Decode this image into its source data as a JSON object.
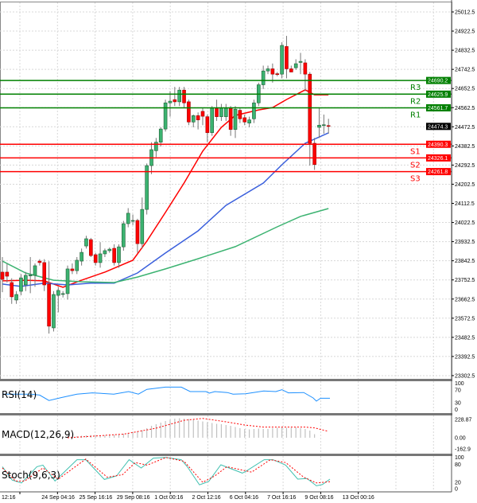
{
  "chart_data": {
    "type": "candlestick",
    "price_axis": {
      "ticks": [
        "25012.5",
        "24922.5",
        "24832.5",
        "24742.5",
        "24652.5",
        "24562.5",
        "24472.5",
        "24382.5",
        "24292.5",
        "24202.5",
        "24112.5",
        "24022.5",
        "23932.5",
        "23842.5",
        "23752.5",
        "23662.5",
        "23572.5",
        "23482.5",
        "23392.5",
        "23302.5"
      ],
      "range": [
        23302.5,
        25012.5
      ]
    },
    "time_axis": {
      "ticks": [
        "12:16",
        "24 Sep 04:16",
        "25 Sep 16:16",
        "29 Sep 08:16",
        "1 Oct 00:16",
        "2 Oct 12:16",
        "6 Oct 04:16",
        "7 Oct 16:16",
        "9 Oct 08:16",
        "13 Oct 00:16"
      ]
    },
    "grid": true,
    "candles_ohlc": [
      [
        23789,
        23860,
        23695,
        23755
      ],
      [
        23789,
        23830,
        23740,
        23770
      ],
      [
        23740,
        23760,
        23640,
        23673
      ],
      [
        23658,
        23700,
        23640,
        23684
      ],
      [
        23699,
        23780,
        23680,
        23762
      ],
      [
        23729,
        23790,
        23700,
        23774
      ],
      [
        23775,
        23860,
        23690,
        23775
      ],
      [
        23774,
        23830,
        23720,
        23819
      ],
      [
        23841,
        23850,
        23820,
        23834
      ],
      [
        23834,
        23850,
        23700,
        23729
      ],
      [
        23733,
        23840,
        23500,
        23535
      ],
      [
        23527,
        23700,
        23510,
        23684
      ],
      [
        23680,
        23720,
        23600,
        23703
      ],
      [
        23688,
        23700,
        23670,
        23688
      ],
      [
        23688,
        23820,
        23660,
        23804
      ],
      [
        23804,
        23830,
        23780,
        23796
      ],
      [
        23796,
        23860,
        23780,
        23845
      ],
      [
        23841,
        23900,
        23820,
        23882
      ],
      [
        23912,
        23960,
        23900,
        23946
      ],
      [
        23942,
        23950,
        23860,
        23867
      ],
      [
        23871,
        23880,
        23820,
        23834
      ],
      [
        23834,
        23930,
        23810,
        23875
      ],
      [
        23875,
        23900,
        23860,
        23890
      ],
      [
        23890,
        23905,
        23880,
        23897
      ],
      [
        23901,
        23920,
        23820,
        23834
      ],
      [
        23834,
        23920,
        23810,
        23908
      ],
      [
        23908,
        24030,
        23890,
        24017
      ],
      [
        24017,
        24090,
        24000,
        24066
      ],
      [
        24032,
        24060,
        24010,
        24032
      ],
      [
        24032,
        24040,
        23880,
        23923
      ],
      [
        23923,
        24140,
        23900,
        24084
      ],
      [
        24084,
        24300,
        24060,
        24290
      ],
      [
        24290,
        24400,
        24250,
        24365
      ],
      [
        24360,
        24420,
        24330,
        24400
      ],
      [
        24400,
        24470,
        24380,
        24462
      ],
      [
        24462,
        24600,
        24450,
        24585
      ],
      [
        24585,
        24640,
        24520,
        24593
      ],
      [
        24600,
        24660,
        24570,
        24590
      ],
      [
        24590,
        24660,
        24570,
        24645
      ],
      [
        24645,
        24660,
        24560,
        24585
      ],
      [
        24590,
        24600,
        24480,
        24495
      ],
      [
        24495,
        24530,
        24470,
        24525
      ],
      [
        24525,
        24540,
        24460,
        24505
      ],
      [
        24545,
        24560,
        24480,
        24522
      ],
      [
        24520,
        24530,
        24400,
        24445
      ],
      [
        24445,
        24570,
        24430,
        24560
      ],
      [
        24560,
        24600,
        24500,
        24520
      ],
      [
        24520,
        24580,
        24500,
        24560
      ],
      [
        24520,
        24580,
        24500,
        24560
      ],
      [
        24560,
        24570,
        24430,
        24460
      ],
      [
        24460,
        24570,
        24420,
        24555
      ],
      [
        24550,
        24560,
        24490,
        24510
      ],
      [
        24515,
        24530,
        24480,
        24495
      ],
      [
        24490,
        24520,
        24470,
        24505
      ],
      [
        24510,
        24600,
        24490,
        24585
      ],
      [
        24585,
        24680,
        24570,
        24670
      ],
      [
        24670,
        24760,
        24650,
        24735
      ],
      [
        24735,
        24760,
        24720,
        24745
      ],
      [
        24745,
        24770,
        24680,
        24720
      ],
      [
        24722,
        24730,
        24710,
        24718
      ],
      [
        24720,
        24870,
        24700,
        24855
      ],
      [
        24850,
        24900,
        24700,
        24745
      ],
      [
        24745,
        24760,
        24730,
        24730
      ],
      [
        24750,
        24790,
        24740,
        24769
      ],
      [
        24775,
        24820,
        24720,
        24780
      ],
      [
        24773,
        24790,
        24640,
        24720
      ],
      [
        24720,
        24730,
        24290,
        24395
      ],
      [
        24395,
        24420,
        24270,
        24295
      ],
      [
        24470,
        24560,
        24420,
        24480
      ],
      [
        24480,
        24530,
        24440,
        24482
      ],
      [
        24478,
        24510,
        24440,
        24475
      ]
    ],
    "moving_averages": [
      {
        "color": "#ff0000",
        "points": [
          [
            0,
            23748
          ],
          [
            5,
            23751
          ],
          [
            9,
            23748
          ],
          [
            13,
            23718
          ],
          [
            17,
            23751
          ],
          [
            22,
            23789
          ],
          [
            28,
            23845
          ],
          [
            31,
            23935
          ],
          [
            35,
            24070
          ],
          [
            39,
            24208
          ],
          [
            43,
            24358
          ],
          [
            47,
            24470
          ],
          [
            50,
            24526
          ],
          [
            55,
            24552
          ],
          [
            58,
            24563
          ],
          [
            61,
            24601
          ],
          [
            65,
            24646
          ],
          [
            66,
            24635
          ],
          [
            67,
            24623
          ],
          [
            70,
            24623
          ]
        ]
      },
      {
        "color": "#3a5fdc",
        "points": [
          [
            0,
            23733
          ],
          [
            4,
            23722
          ],
          [
            9,
            23737
          ],
          [
            14,
            23729
          ],
          [
            19,
            23737
          ],
          [
            24,
            23737
          ],
          [
            29,
            23785
          ],
          [
            35,
            23879
          ],
          [
            42,
            23983
          ],
          [
            48,
            24103
          ],
          [
            56,
            24208
          ],
          [
            60,
            24294
          ],
          [
            65,
            24395
          ],
          [
            70,
            24444
          ]
        ]
      },
      {
        "color": "#3cb371",
        "points": [
          [
            0,
            23841
          ],
          [
            5,
            23785
          ],
          [
            11,
            23751
          ],
          [
            17,
            23744
          ],
          [
            24,
            23740
          ],
          [
            29,
            23766
          ],
          [
            35,
            23804
          ],
          [
            42,
            23852
          ],
          [
            50,
            23909
          ],
          [
            59,
            24002
          ],
          [
            64,
            24051
          ],
          [
            70,
            24088
          ]
        ]
      }
    ],
    "pivots": [
      {
        "label": "R3",
        "value": "24690.2",
        "color": "#008000"
      },
      {
        "label": "R2",
        "value": "24625.9",
        "color": "#008000"
      },
      {
        "label": "R1",
        "value": "24561.7",
        "color": "#008000"
      },
      {
        "label": "S1",
        "value": "24390.3",
        "color": "#ff0000"
      },
      {
        "label": "S2",
        "value": "24326.1",
        "color": "#ff0000"
      },
      {
        "label": "S3",
        "value": "24261.8",
        "color": "#ff0000"
      }
    ],
    "current_price": "24474.3",
    "rsi": {
      "label": "RSI(14)",
      "ticks": [
        "100",
        "70",
        "30",
        "0"
      ],
      "color": "#1e90ff",
      "points": [
        [
          0,
          57
        ],
        [
          6.1,
          57
        ],
        [
          8,
          54
        ],
        [
          10,
          37
        ],
        [
          12.6,
          46
        ],
        [
          16,
          57
        ],
        [
          19.3,
          61
        ],
        [
          23.9,
          57
        ],
        [
          27.1,
          65
        ],
        [
          29.2,
          57
        ],
        [
          31,
          72
        ],
        [
          35,
          79
        ],
        [
          38.4,
          79
        ],
        [
          40.3,
          65
        ],
        [
          43.7,
          65
        ],
        [
          44.4,
          60
        ],
        [
          45.6,
          65
        ],
        [
          48.3,
          62
        ],
        [
          49.5,
          57
        ],
        [
          52.2,
          58
        ],
        [
          56.1,
          67
        ],
        [
          58.7,
          65
        ],
        [
          60,
          71
        ],
        [
          61.4,
          61
        ],
        [
          64.7,
          62
        ],
        [
          66.7,
          45
        ],
        [
          67.4,
          35
        ],
        [
          68.3,
          44
        ],
        [
          70.3,
          44
        ]
      ]
    },
    "macd": {
      "label": "MACD(12,26,9)",
      "ticks": [
        "228.87",
        "0.00",
        "-162.9"
      ],
      "range": [
        -162.9,
        228.87
      ],
      "histogram": [
        -5,
        -8,
        -10,
        -8,
        -5,
        -3,
        0,
        2,
        0,
        -10,
        -15,
        -10,
        -5,
        0,
        10,
        15,
        20,
        25,
        30,
        33,
        30,
        30,
        32,
        35,
        38,
        42,
        50,
        58,
        70,
        80,
        95,
        120,
        150,
        170,
        190,
        210,
        225,
        240,
        245,
        240,
        235,
        225,
        215,
        205,
        195,
        185,
        175,
        170,
        160,
        150,
        135,
        120,
        110,
        105,
        110,
        115,
        110,
        110,
        120,
        125,
        130,
        125,
        125,
        130,
        120,
        110,
        90,
        45
      ],
      "signal": [
        [
          14,
          0
        ],
        [
          26,
          45
        ],
        [
          33,
          120
        ],
        [
          39,
          219
        ],
        [
          43,
          243
        ],
        [
          48,
          200
        ],
        [
          52,
          160
        ],
        [
          56,
          134
        ],
        [
          65,
          134
        ],
        [
          67,
          124
        ],
        [
          70,
          80
        ]
      ]
    },
    "stoch": {
      "label": "Stoch(9,6,3)",
      "ticks": [
        "100",
        "80",
        "20",
        "0"
      ],
      "main": [
        [
          0,
          69
        ],
        [
          2.1,
          27
        ],
        [
          4.1,
          18
        ],
        [
          7.4,
          69
        ],
        [
          8.7,
          74
        ],
        [
          11.3,
          24
        ],
        [
          16,
          91
        ],
        [
          17.9,
          91
        ],
        [
          21.9,
          29
        ],
        [
          24.5,
          40
        ],
        [
          27.2,
          91
        ],
        [
          29.8,
          65
        ],
        [
          32.4,
          96
        ],
        [
          35.1,
          98
        ],
        [
          38.4,
          91
        ],
        [
          39.7,
          69
        ],
        [
          42.3,
          12
        ],
        [
          44.3,
          23
        ],
        [
          46.9,
          75
        ],
        [
          51.5,
          49
        ],
        [
          52.2,
          54
        ],
        [
          56.2,
          91
        ],
        [
          58.1,
          91
        ],
        [
          60.8,
          74
        ],
        [
          63.4,
          30
        ],
        [
          65.4,
          32
        ],
        [
          67.4,
          9
        ],
        [
          68.7,
          13
        ],
        [
          70.3,
          30
        ]
      ],
      "signal": [
        [
          0,
          65
        ],
        [
          2.8,
          24
        ],
        [
          4.8,
          24
        ],
        [
          8.7,
          65
        ],
        [
          12,
          30
        ],
        [
          17.9,
          93
        ],
        [
          22.5,
          36
        ],
        [
          25.8,
          44
        ],
        [
          28.5,
          82
        ],
        [
          31.1,
          74
        ],
        [
          35.1,
          98
        ],
        [
          39,
          86
        ],
        [
          43,
          20
        ],
        [
          45.6,
          40
        ],
        [
          48.2,
          69
        ],
        [
          53.5,
          52
        ],
        [
          57.5,
          91
        ],
        [
          60.8,
          82
        ],
        [
          64.7,
          36
        ],
        [
          67.4,
          18
        ],
        [
          70.3,
          22
        ]
      ]
    }
  }
}
